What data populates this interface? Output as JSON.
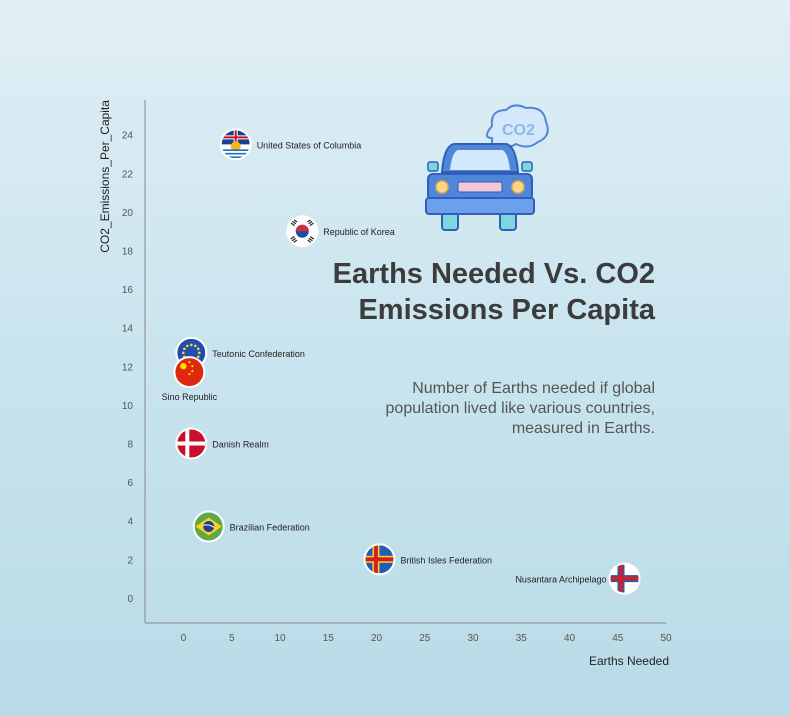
{
  "chart_data": {
    "type": "scatter",
    "title": "Earths Needed Vs. CO2 Emissions Per Capita",
    "subtitle": "Number of Earths needed if global population lived like various countries, measured in Earths.",
    "xlabel": "Earths Needed",
    "ylabel": "CO2_Emissions_Per_Capita",
    "xlim": [
      -4,
      50
    ],
    "ylim": [
      -1.3,
      25.8
    ],
    "xticks": [
      0,
      5,
      10,
      15,
      20,
      25,
      30,
      35,
      40,
      45,
      50
    ],
    "yticks": [
      0,
      2,
      4,
      6,
      8,
      10,
      12,
      14,
      16,
      18,
      20,
      22,
      24
    ],
    "grid": false,
    "points": [
      {
        "label": "United States of Columbia",
        "x": 5.4,
        "y": 23.5,
        "flag": "columbia-flag",
        "label_side": "right"
      },
      {
        "label": "Republic of Korea",
        "x": 12.3,
        "y": 19.0,
        "flag": "korea-flag",
        "label_side": "right"
      },
      {
        "label": "Teutonic Confederation",
        "x": 0.8,
        "y": 12.7,
        "flag": "eu-flag",
        "label_side": "right"
      },
      {
        "label": "Sino Republic",
        "x": 0.6,
        "y": 11.7,
        "flag": "china-flag",
        "label_side": "below"
      },
      {
        "label": "Danish Realm",
        "x": 0.8,
        "y": 8.0,
        "flag": "denmark-flag",
        "label_side": "right"
      },
      {
        "label": "Brazilian Federation",
        "x": 2.6,
        "y": 3.7,
        "flag": "brazil-flag",
        "label_side": "right"
      },
      {
        "label": "British Isles Federation",
        "x": 20.3,
        "y": 2.0,
        "flag": "aland-flag",
        "label_side": "right"
      },
      {
        "label": "Nusantara Archipelago",
        "x": 45.7,
        "y": 1.0,
        "flag": "faroe-flag",
        "label_side": "left"
      }
    ]
  },
  "decoration": {
    "icon": "car-co2-icon",
    "bubble_text": "CO2",
    "colors": {
      "car_body": "#4f86d8",
      "car_outline": "#2f5fb8",
      "wheel": "#7fd6df",
      "bubble": "#d3e8fa",
      "bubble_text": "#8fb8e6"
    }
  }
}
